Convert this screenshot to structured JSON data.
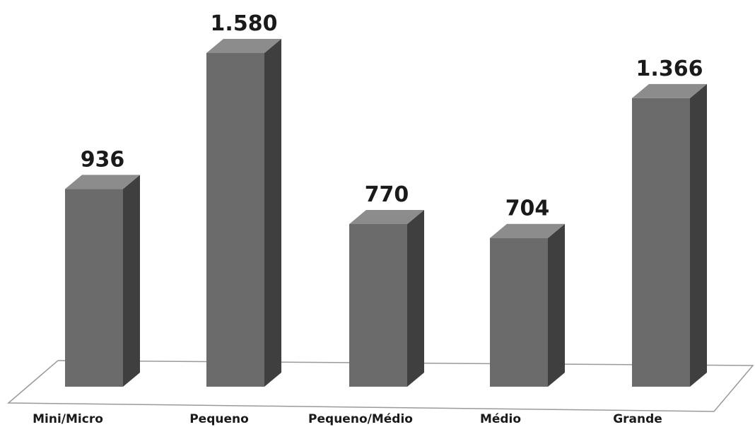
{
  "chart_data": {
    "type": "bar",
    "categories": [
      "Mini/Micro",
      "Pequeno",
      "Pequeno/Médio",
      "Médio",
      "Grande"
    ],
    "values": [
      936,
      1580,
      770,
      704,
      1366
    ],
    "value_labels": [
      "936",
      "1.580",
      "770",
      "704",
      "1.366"
    ],
    "title": "",
    "xlabel": "",
    "ylabel": "",
    "ylim": [
      0,
      1580
    ],
    "grid": false,
    "legend": "none",
    "style": "3d-column"
  },
  "colors": {
    "bar_front": "#6b6b6b",
    "bar_top": "#8c8c8c",
    "bar_side": "#3f3f3f",
    "floor_line": "#9a9a9a"
  }
}
